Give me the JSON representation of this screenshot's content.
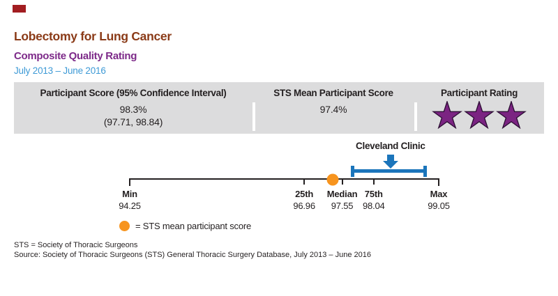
{
  "page": {
    "title": "Lobectomy for Lung Cancer",
    "subtitle": "Composite Quality Rating",
    "period": "July 2013 – June 2016"
  },
  "summary_panel": {
    "participant_score": {
      "header": "Participant Score (95% Confidence Interval)",
      "score": "98.3%",
      "confidence_interval": "(97.71, 98.84)"
    },
    "sts_mean": {
      "header": "STS Mean Participant Score",
      "score": "97.4%"
    },
    "rating": {
      "header": "Participant Rating",
      "stars": 3
    }
  },
  "chart_data": {
    "type": "scatter",
    "title": "Lobectomy for Lung Cancer — Composite Quality Rating",
    "subtitle": "July 2013 – June 2016",
    "axis_range": [
      94.25,
      99.05
    ],
    "ticks": [
      {
        "label": "Min",
        "value": 94.25
      },
      {
        "label": "25th",
        "value": 96.96
      },
      {
        "label": "Median",
        "value": 97.55
      },
      {
        "label": "75th",
        "value": 98.04
      },
      {
        "label": "Max",
        "value": 99.05
      }
    ],
    "sts_mean": 97.4,
    "participant_score": 98.3,
    "confidence_interval": [
      97.71,
      98.84
    ],
    "annotation": "Cleveland Clinic",
    "legend": "= STS mean participant score",
    "legend_position": "bottom-left",
    "grid": false
  },
  "footnotes": {
    "abbreviation": "STS = Society of Thoracic Surgeons",
    "source": "Source: Society of Thoracic Surgeons (STS) General Thoracic Surgery Database, July 2013 – June 2016"
  },
  "colors": {
    "title_brown": "#8a3a17",
    "subtitle_purple": "#7d2a89",
    "period_blue": "#3e9ad6",
    "panel_gray": "#dcdcdd",
    "text_dark": "#231f20",
    "star_purple": "#7b2482",
    "star_stroke": "#2d0e35",
    "chart_blue": "#1b75bb",
    "mean_orange": "#f7941e",
    "corner_red": "#a21d21"
  }
}
